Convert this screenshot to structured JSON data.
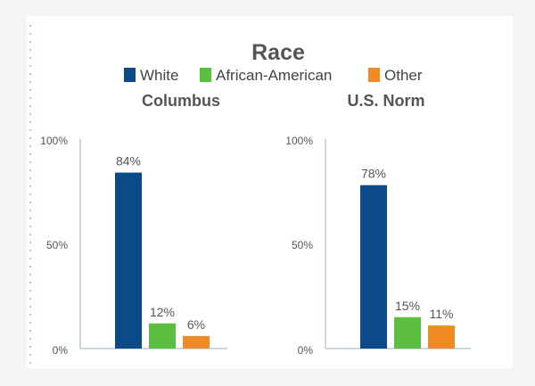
{
  "title": "Race",
  "legend": [
    {
      "label": "White",
      "color": "#0d4a8a"
    },
    {
      "label": "African-American",
      "color": "#5cbf3f"
    },
    {
      "label": "Other",
      "color": "#f08a24"
    }
  ],
  "chart_data": [
    {
      "type": "bar",
      "title": "Columbus",
      "categories": [
        "White",
        "African-American",
        "Other"
      ],
      "values": [
        84,
        12,
        6
      ],
      "value_labels": [
        "84%",
        "12%",
        "6%"
      ],
      "yticks": [
        "0%",
        "50%",
        "100%"
      ],
      "ylim": [
        0,
        100
      ],
      "grid": false,
      "legend_position": "top"
    },
    {
      "type": "bar",
      "title": "U.S. Norm",
      "categories": [
        "White",
        "African-American",
        "Other"
      ],
      "values": [
        78,
        15,
        11
      ],
      "value_labels": [
        "78%",
        "15%",
        "11%"
      ],
      "yticks": [
        "0%",
        "50%",
        "100%"
      ],
      "ylim": [
        0,
        100
      ],
      "grid": false,
      "legend_position": "top"
    }
  ]
}
